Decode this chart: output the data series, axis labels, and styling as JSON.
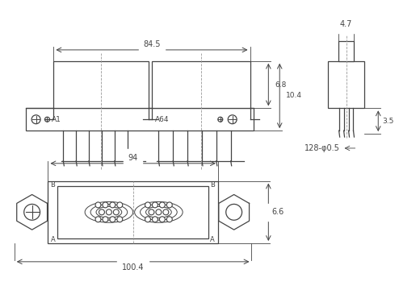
{
  "line_color": "#444444",
  "dim_color": "#444444",
  "dims": {
    "top_width": "84.5",
    "top_height1": "6.8",
    "top_height2": "10.4",
    "side_width": "4.7",
    "side_height": "3.5",
    "side_label": "128-φ0.5",
    "bot_width1": "94",
    "bot_width2": "100.4",
    "bot_height": "6.6"
  }
}
